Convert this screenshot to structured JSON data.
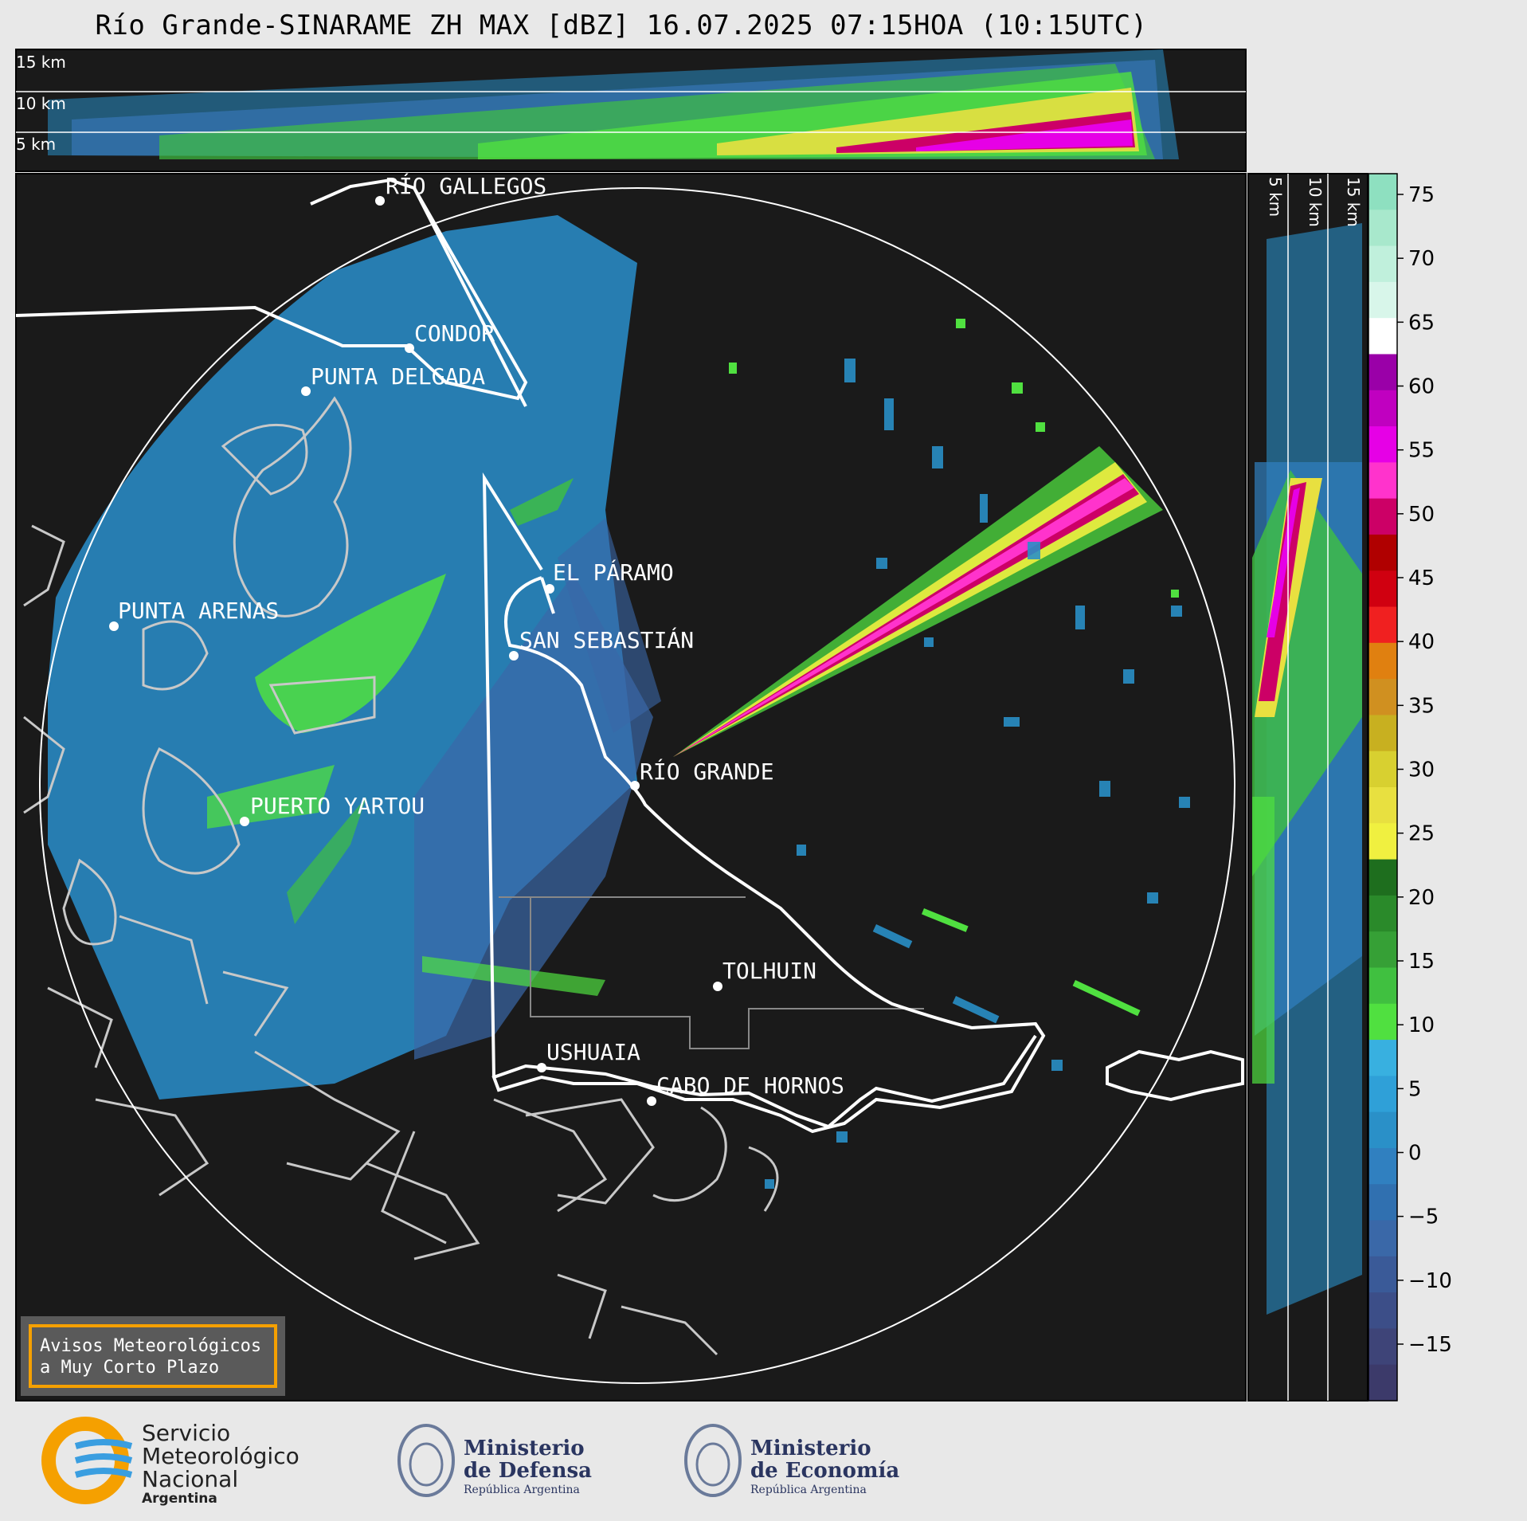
{
  "title": "Río Grande-SINARAME ZH MAX [dBZ] 16.07.2025 07:15HOA (10:15UTC)",
  "top_panel": {
    "labels": [
      "15 km",
      "10 km",
      "5 km"
    ]
  },
  "side_panel": {
    "labels": [
      "5 km",
      "10 km",
      "15 km"
    ]
  },
  "colorbar": {
    "ticks": [
      "75",
      "70",
      "65",
      "60",
      "55",
      "50",
      "45",
      "40",
      "35",
      "30",
      "25",
      "20",
      "15",
      "10",
      "5",
      "0",
      "−5",
      "−10",
      "−15"
    ],
    "colors": [
      "#8ee0c0",
      "#a8e8cc",
      "#c0f0dc",
      "#d8f6ea",
      "#ffffff",
      "#9a00a8",
      "#c000c0",
      "#e600e6",
      "#ff33cc",
      "#cc0066",
      "#b00000",
      "#d00010",
      "#f02020",
      "#e08010",
      "#d09020",
      "#c8b020",
      "#d8d030",
      "#e8e040",
      "#f0f040",
      "#1e6e1e",
      "#2a8a2a",
      "#36a036",
      "#40c040",
      "#50e040",
      "#38b0e0",
      "#2fa0d8",
      "#2a90c8",
      "#3080c0",
      "#3070b0",
      "#3a68a8",
      "#3a5a98",
      "#3c4e88",
      "#3e4478",
      "#3c3a6a"
    ],
    "accent": "#f5a000"
  },
  "cities": [
    {
      "name": "RÍO GALLEGOS"
    },
    {
      "name": "CONDOR"
    },
    {
      "name": "PUNTA DELGADA"
    },
    {
      "name": "EL PÁRAMO"
    },
    {
      "name": "PUNTA ARENAS"
    },
    {
      "name": "SAN SEBASTIÁN"
    },
    {
      "name": "RÍO GRANDE"
    },
    {
      "name": "PUERTO YARTOU"
    },
    {
      "name": "TOLHUIN"
    },
    {
      "name": "USHUAIA"
    },
    {
      "name": "CABO DE HORNOS"
    }
  ],
  "notice": {
    "line1": "Avisos Meteorológicos",
    "line2": "a Muy Corto Plazo"
  },
  "logos": {
    "smn": {
      "line1": "Servicio",
      "line2": "Meteorológico",
      "line3": "Nacional",
      "line4": "Argentina"
    },
    "defensa": {
      "line1": "Ministerio",
      "line2": "de Defensa",
      "line3": "República Argentina"
    },
    "economia": {
      "line1": "Ministerio",
      "line2": "de Economía",
      "line3": "República Argentina"
    }
  }
}
